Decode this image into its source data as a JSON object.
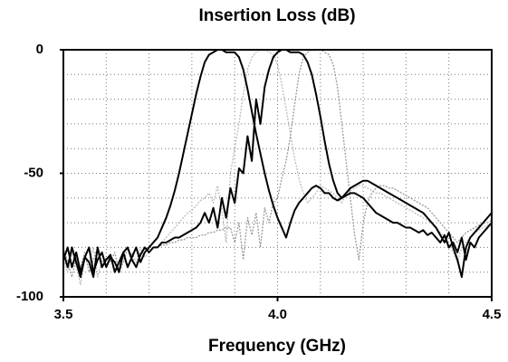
{
  "chart_data": {
    "type": "line",
    "title": "Insertion Loss (dB)",
    "x_label": "Frequency (GHz)",
    "xlim": [
      3.5,
      4.5
    ],
    "ylim": [
      -100,
      0
    ],
    "xticks": [
      3.5,
      {
        "value": 4,
        "label": "4.0"
      },
      4.5
    ],
    "yticks": [
      0,
      -50,
      -100
    ],
    "grid": true,
    "xgrid": [
      3.6,
      3.7,
      3.8,
      3.9,
      4.0,
      4.1,
      4.2,
      4.3,
      4.4
    ],
    "ygrid": [
      -10,
      -20,
      -30,
      -40,
      -50,
      -60,
      -70,
      -80,
      -90
    ],
    "x": [
      3.5,
      3.51,
      3.52,
      3.53,
      3.54,
      3.55,
      3.56,
      3.57,
      3.58,
      3.59,
      3.6,
      3.61,
      3.62,
      3.63,
      3.64,
      3.65,
      3.66,
      3.67,
      3.68,
      3.69,
      3.7,
      3.71,
      3.72,
      3.73,
      3.74,
      3.75,
      3.76,
      3.77,
      3.78,
      3.79,
      3.8,
      3.81,
      3.82,
      3.83,
      3.84,
      3.85,
      3.86,
      3.87,
      3.88,
      3.89,
      3.9,
      3.91,
      3.92,
      3.93,
      3.94,
      3.95,
      3.96,
      3.97,
      3.98,
      3.99,
      4.0,
      4.01,
      4.02,
      4.03,
      4.04,
      4.05,
      4.06,
      4.07,
      4.08,
      4.09,
      4.1,
      4.11,
      4.12,
      4.13,
      4.14,
      4.15,
      4.16,
      4.17,
      4.18,
      4.19,
      4.2,
      4.21,
      4.22,
      4.23,
      4.24,
      4.25,
      4.26,
      4.27,
      4.28,
      4.29,
      4.3,
      4.31,
      4.32,
      4.33,
      4.34,
      4.35,
      4.36,
      4.37,
      4.38,
      4.39,
      4.4,
      4.41,
      4.42,
      4.43,
      4.44,
      4.45,
      4.46,
      4.47,
      4.48,
      4.49,
      4.5
    ],
    "series": [
      {
        "color": "#bbbbbb",
        "style": "dotted",
        "values": [
          -85,
          -90,
          -82,
          -88,
          -95,
          -84,
          -86,
          -80,
          -92,
          -85,
          -88,
          -83,
          -90,
          -86,
          -84,
          -88,
          -82,
          -86,
          -80,
          -84,
          -82,
          -80,
          -80,
          -78,
          -76,
          -74,
          -72,
          -70,
          -68,
          -66,
          -65,
          -63,
          -61,
          -60,
          -58,
          -62,
          -55,
          -65,
          -78,
          -50,
          -40,
          -30,
          -18,
          -8,
          -3,
          -1,
          0,
          0,
          -1,
          -2,
          -6,
          -14,
          -24,
          -34,
          -44,
          -52,
          -58,
          -62,
          -60,
          -58,
          -55,
          -56,
          -57,
          -58,
          -60,
          -62,
          -58,
          -57,
          -56,
          -55,
          -55,
          -56,
          -57,
          -58,
          -58,
          -59,
          -60,
          -61,
          -62,
          -63,
          -64,
          -65,
          -66,
          -67,
          -68,
          -69,
          -70,
          -72,
          -74,
          -76,
          -78,
          -82,
          -86,
          -80,
          -78,
          -76,
          -74,
          -73,
          -72,
          -71,
          -70
        ]
      },
      {
        "color": "#999999",
        "style": "dotted",
        "values": [
          -80,
          -86,
          -92,
          -84,
          -88,
          -82,
          -90,
          -85,
          -80,
          -88,
          -84,
          -86,
          -82,
          -90,
          -86,
          -80,
          -84,
          -88,
          -82,
          -80,
          -82,
          -80,
          -80,
          -79,
          -79,
          -78,
          -78,
          -77,
          -77,
          -76,
          -76,
          -76,
          -75,
          -75,
          -74,
          -74,
          -73,
          -73,
          -72,
          -72,
          -78,
          -70,
          -85,
          -68,
          -75,
          -66,
          -80,
          -64,
          -70,
          -62,
          -60,
          -52,
          -45,
          -35,
          -22,
          -10,
          -3,
          -1,
          0,
          0,
          0,
          -1,
          -2,
          -6,
          -15,
          -30,
          -45,
          -60,
          -75,
          -85,
          -70,
          -62,
          -58,
          -56,
          -55,
          -55,
          -56,
          -56,
          -57,
          -58,
          -59,
          -60,
          -61,
          -62,
          -63,
          -64,
          -66,
          -68,
          -70,
          -72,
          -74,
          -76,
          -78,
          -76,
          -74,
          -73,
          -72,
          -71,
          -70,
          -70,
          -69
        ]
      },
      {
        "color": "#000000",
        "style": "solid",
        "values": [
          -85,
          -80,
          -88,
          -82,
          -90,
          -84,
          -86,
          -92,
          -80,
          -88,
          -85,
          -83,
          -90,
          -86,
          -82,
          -88,
          -84,
          -80,
          -86,
          -82,
          -80,
          -78,
          -76,
          -72,
          -68,
          -63,
          -57,
          -50,
          -42,
          -34,
          -26,
          -18,
          -11,
          -5,
          -2,
          -1,
          0,
          0,
          -1,
          -1,
          -1,
          -3,
          -8,
          -16,
          -25,
          -34,
          -42,
          -50,
          -57,
          -63,
          -68,
          -72,
          -76,
          -70,
          -65,
          -62,
          -60,
          -58,
          -56,
          -55,
          -56,
          -58,
          -58,
          -60,
          -61,
          -60,
          -59,
          -58,
          -58,
          -59,
          -60,
          -62,
          -64,
          -66,
          -67,
          -68,
          -69,
          -70,
          -70,
          -71,
          -72,
          -72,
          -73,
          -74,
          -73,
          -75,
          -74,
          -76,
          -78,
          -75,
          -80,
          -78,
          -82,
          -76,
          -85,
          -78,
          -80,
          -76,
          -74,
          -72,
          -70
        ]
      },
      {
        "color": "#000000",
        "style": "solid",
        "values": [
          -82,
          -88,
          -80,
          -86,
          -92,
          -84,
          -80,
          -90,
          -85,
          -82,
          -88,
          -84,
          -86,
          -90,
          -82,
          -80,
          -85,
          -88,
          -83,
          -80,
          -82,
          -80,
          -80,
          -78,
          -78,
          -77,
          -76,
          -76,
          -75,
          -74,
          -73,
          -72,
          -70,
          -66,
          -70,
          -64,
          -72,
          -60,
          -68,
          -56,
          -62,
          -48,
          -50,
          -35,
          -45,
          -20,
          -30,
          -15,
          -8,
          -3,
          -1,
          0,
          0,
          -1,
          -1,
          -1,
          -2,
          -5,
          -10,
          -18,
          -27,
          -37,
          -46,
          -53,
          -58,
          -60,
          -58,
          -56,
          -55,
          -54,
          -53,
          -53,
          -54,
          -55,
          -56,
          -57,
          -58,
          -59,
          -60,
          -61,
          -62,
          -63,
          -64,
          -65,
          -66,
          -68,
          -70,
          -72,
          -75,
          -78,
          -74,
          -80,
          -85,
          -92,
          -80,
          -76,
          -74,
          -72,
          -70,
          -68,
          -66
        ]
      }
    ]
  }
}
